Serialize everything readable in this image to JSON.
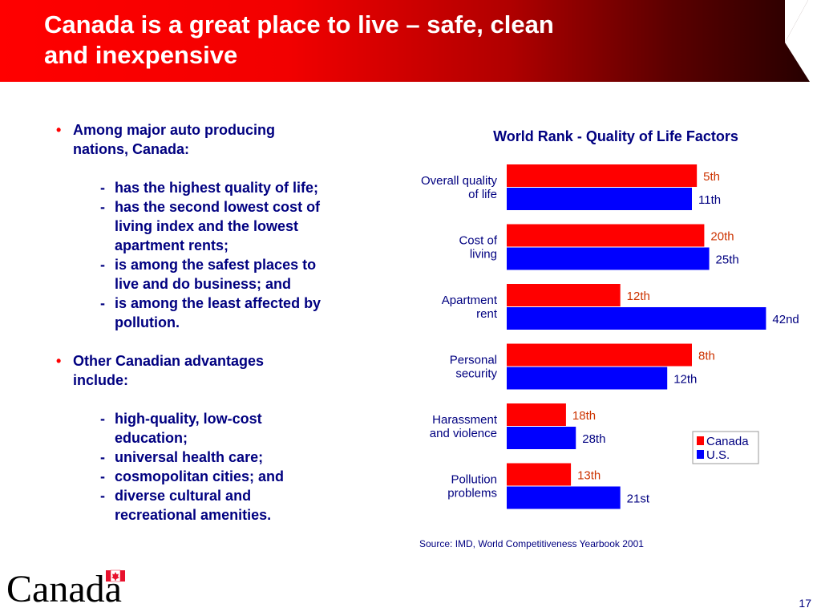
{
  "slide": {
    "title_line1": "Canada is a great place to live – safe, clean",
    "title_line2": "and inexpensive",
    "page_number": "17",
    "source": "Source: IMD, World Competitiveness Yearbook 2001",
    "logo_text": "Canada",
    "bullets": [
      {
        "lines": [
          "Among major auto producing",
          "nations, Canada:"
        ],
        "sub_items": [
          [
            "has the highest quality of life;"
          ],
          [
            "has the second lowest cost of",
            "living index and the lowest",
            "apartment rents;"
          ],
          [
            "is among the safest places to",
            "live and do business; and"
          ],
          [
            "is among the least affected by",
            "pollution."
          ]
        ]
      },
      {
        "lines": [
          "Other Canadian advantages",
          "include:"
        ],
        "sub_items": [
          [
            "high-quality, low-cost",
            "education;"
          ],
          [
            "universal health care;"
          ],
          [
            "cosmopolitan cities; and"
          ],
          [
            "diverse cultural and",
            "recreational amenities."
          ]
        ]
      }
    ]
  },
  "colors": {
    "canada_red": "#ff0000",
    "us_blue": "#0000ff",
    "text_navy": "#000080",
    "canada_label": "#cc3300"
  },
  "chart_data": {
    "type": "bar",
    "orientation": "horizontal",
    "title": "World Rank - Quality of Life Factors",
    "categories": [
      [
        "Overall quality",
        "of life"
      ],
      [
        "Cost of",
        "living"
      ],
      [
        "Apartment",
        "rent"
      ],
      [
        "Personal",
        "security"
      ],
      [
        "Harassment",
        "and violence"
      ],
      [
        "Pollution",
        "problems"
      ]
    ],
    "series": [
      {
        "name": "Canada",
        "color": "#ff0000",
        "labels": [
          "5th",
          "20th",
          "12th",
          "8th",
          "18th",
          "13th"
        ],
        "values": [
          7.7,
          8.0,
          4.6,
          7.5,
          2.4,
          2.6
        ]
      },
      {
        "name": "U.S.",
        "color": "#0000ff",
        "labels": [
          "11th",
          "25th",
          "42nd",
          "12th",
          "28th",
          "21st"
        ],
        "values": [
          7.5,
          8.2,
          10.5,
          6.5,
          2.8,
          4.6
        ]
      }
    ],
    "xlim": [
      0,
      10.5
    ],
    "legend": "bottom-right"
  }
}
